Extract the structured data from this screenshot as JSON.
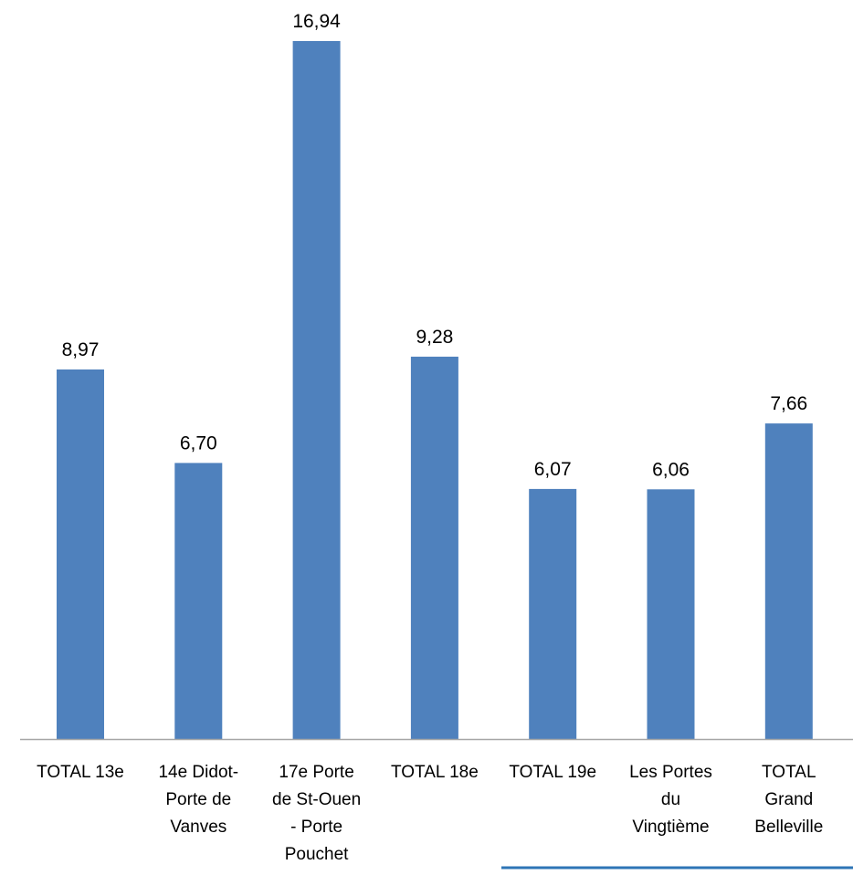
{
  "chart_data": {
    "type": "bar",
    "title": "",
    "xlabel": "",
    "ylabel": "",
    "categories": [
      [
        "TOTAL 13e"
      ],
      [
        "14e Didot-",
        "Porte de",
        "Vanves"
      ],
      [
        "17e Porte",
        "de St-Ouen",
        "- Porte",
        "Pouchet"
      ],
      [
        "TOTAL 18e"
      ],
      [
        "TOTAL 19e"
      ],
      [
        "Les Portes",
        "du",
        "Vingtième"
      ],
      [
        "TOTAL",
        "Grand",
        "Belleville"
      ]
    ],
    "values": [
      8.97,
      6.7,
      16.94,
      9.28,
      6.07,
      6.06,
      7.66
    ],
    "data_labels": [
      "8,97",
      "6,70",
      "16,94",
      "9,28",
      "6,07",
      "6,06",
      "7,66"
    ],
    "ylim": [
      0,
      17.5
    ],
    "grid": false,
    "legend": "none",
    "colors": {
      "bar": "#4F81BD",
      "axis": "#A6A6A6",
      "underline": "#2E75B6"
    }
  }
}
